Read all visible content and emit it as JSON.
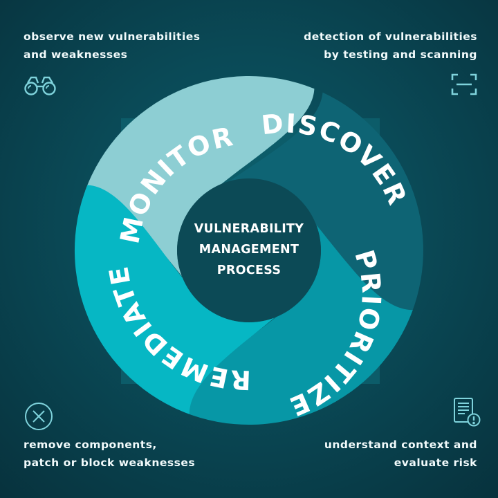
{
  "center_title": [
    "VULNERABILITY",
    "MANAGEMENT",
    "PROCESS"
  ],
  "stages": [
    {
      "id": "monitor",
      "label": "MONITOR",
      "color": "#8dced3",
      "description": [
        "observe new vulnerabilities",
        "and weaknesses"
      ],
      "icon": "binoculars-icon"
    },
    {
      "id": "discover",
      "label": "DISCOVER",
      "color": "#0e6474",
      "description": [
        "detection of vulnerabilities",
        "by testing and scanning"
      ],
      "icon": "scan-icon"
    },
    {
      "id": "prioritize",
      "label": "PRIORITIZE",
      "color": "#0797a6",
      "description": [
        "understand context and",
        "evaluate risk"
      ],
      "icon": "report-icon"
    },
    {
      "id": "remediate",
      "label": "REMEDIATE",
      "color": "#06b7c4",
      "description": [
        "remove components,",
        "patch or block weaknesses"
      ],
      "icon": "remove-icon"
    }
  ],
  "colors": {
    "background": "#0a4a57",
    "hub": "#0c4a56",
    "frame": "#0c5c69",
    "icon_stroke": "#7fd3dc"
  }
}
